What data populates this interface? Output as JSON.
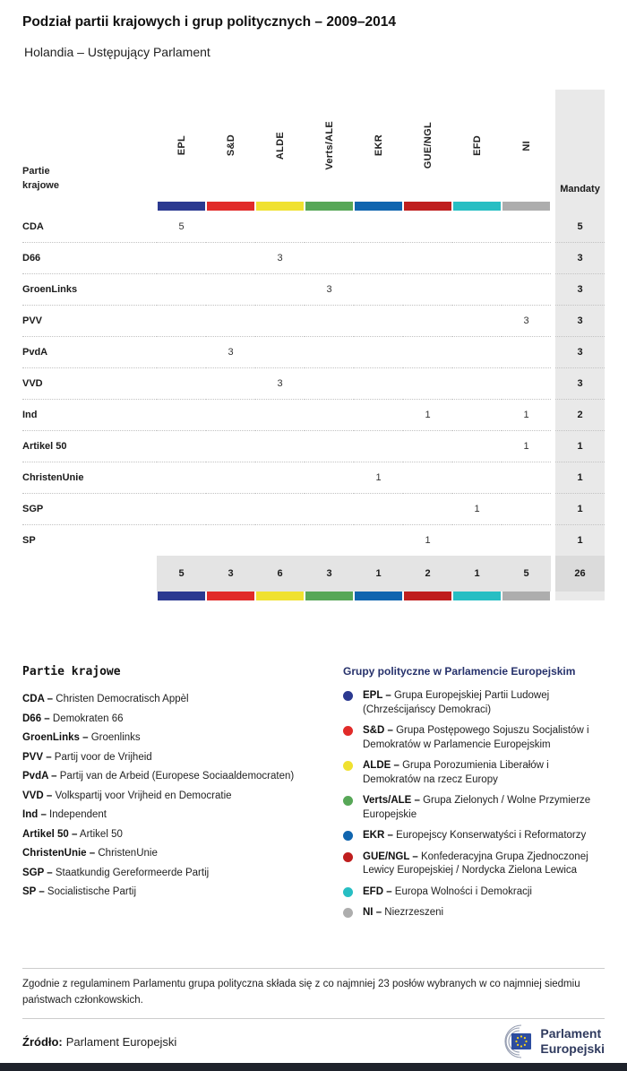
{
  "header": {
    "title": "Podział partii krajowych i grup politycznych – 2009–2014",
    "subtitle": "Holandia – Ustępujący Parlament"
  },
  "chart_data": {
    "type": "table",
    "title": "Podział partii krajowych i grup politycznych – 2009–2014",
    "subtitle": "Holandia – Ustępujący Parlament",
    "party_col_label_lines": [
      "Partie",
      "krajowe"
    ],
    "mandates_label": "Mandaty",
    "groups": [
      {
        "code": "EPL",
        "color": "#2B3990"
      },
      {
        "code": "S&D",
        "color": "#E12B29"
      },
      {
        "code": "ALDE",
        "color": "#F0E130"
      },
      {
        "code": "Verts/ALE",
        "color": "#57A757"
      },
      {
        "code": "EKR",
        "color": "#1065AF"
      },
      {
        "code": "GUE/NGL",
        "color": "#BF1E1E"
      },
      {
        "code": "EFD",
        "color": "#27BEC3"
      },
      {
        "code": "NI",
        "color": "#ADADAD"
      }
    ],
    "rows": [
      {
        "party": "CDA",
        "values": [
          5,
          null,
          null,
          null,
          null,
          null,
          null,
          null
        ],
        "mandates": 5
      },
      {
        "party": "D66",
        "values": [
          null,
          null,
          3,
          null,
          null,
          null,
          null,
          null
        ],
        "mandates": 3
      },
      {
        "party": "GroenLinks",
        "values": [
          null,
          null,
          null,
          3,
          null,
          null,
          null,
          null
        ],
        "mandates": 3
      },
      {
        "party": "PVV",
        "values": [
          null,
          null,
          null,
          null,
          null,
          null,
          null,
          3
        ],
        "mandates": 3
      },
      {
        "party": "PvdA",
        "values": [
          null,
          3,
          null,
          null,
          null,
          null,
          null,
          null
        ],
        "mandates": 3
      },
      {
        "party": "VVD",
        "values": [
          null,
          null,
          3,
          null,
          null,
          null,
          null,
          null
        ],
        "mandates": 3
      },
      {
        "party": "Ind",
        "values": [
          null,
          null,
          null,
          null,
          null,
          1,
          null,
          1
        ],
        "mandates": 2
      },
      {
        "party": "Artikel 50",
        "values": [
          null,
          null,
          null,
          null,
          null,
          null,
          null,
          1
        ],
        "mandates": 1
      },
      {
        "party": "ChristenUnie",
        "values": [
          null,
          null,
          null,
          null,
          1,
          null,
          null,
          null
        ],
        "mandates": 1
      },
      {
        "party": "SGP",
        "values": [
          null,
          null,
          null,
          null,
          null,
          null,
          1,
          null
        ],
        "mandates": 1
      },
      {
        "party": "SP",
        "values": [
          null,
          null,
          null,
          null,
          null,
          1,
          null,
          null
        ],
        "mandates": 1
      }
    ],
    "totals": {
      "values": [
        5,
        3,
        6,
        3,
        1,
        2,
        1,
        5
      ],
      "mandates": 26
    }
  },
  "legend_parties": {
    "heading": "Partie krajowe",
    "items": [
      {
        "abbr": "CDA",
        "name": "Christen Democratisch Appèl"
      },
      {
        "abbr": "D66",
        "name": "Demokraten 66"
      },
      {
        "abbr": "GroenLinks",
        "name": "Groenlinks"
      },
      {
        "abbr": "PVV",
        "name": "Partij voor de Vrijheid"
      },
      {
        "abbr": "PvdA",
        "name": "Partij van de Arbeid (Europese Sociaaldemocraten)"
      },
      {
        "abbr": "VVD",
        "name": "Volkspartij voor Vrijheid en Democratie"
      },
      {
        "abbr": "Ind",
        "name": "Independent"
      },
      {
        "abbr": "Artikel 50",
        "name": "Artikel 50"
      },
      {
        "abbr": "ChristenUnie",
        "name": "ChristenUnie"
      },
      {
        "abbr": "SGP",
        "name": "Staatkundig Gereformeerde Partij"
      },
      {
        "abbr": "SP",
        "name": "Socialistische Partij"
      }
    ]
  },
  "legend_groups": {
    "heading": "Grupy polityczne w Parlamencie Europejskim",
    "items": [
      {
        "code": "EPL",
        "color": "#2B3990",
        "description": "Grupa Europejskiej Partii Ludowej (Chrześcijańscy Demokraci)"
      },
      {
        "code": "S&D",
        "color": "#E12B29",
        "description": "Grupa Postępowego Sojuszu Socjalistów i Demokratów w Parlamencie Europejskim"
      },
      {
        "code": "ALDE",
        "color": "#F0E130",
        "description": "Grupa Porozumienia Liberałów i Demokratów na rzecz Europy"
      },
      {
        "code": "Verts/ALE",
        "color": "#57A757",
        "description": "Grupa Zielonych / Wolne Przymierze Europejskie"
      },
      {
        "code": "EKR",
        "color": "#1065AF",
        "description": "Europejscy Konserwatyści i Reformatorzy"
      },
      {
        "code": "GUE/NGL",
        "color": "#BF1E1E",
        "description": "Konfederacyjna Grupa Zjednoczonej Lewicy Europejskiej / Nordycka Zielona Lewica"
      },
      {
        "code": "EFD",
        "color": "#27BEC3",
        "description": "Europa Wolności i Demokracji"
      },
      {
        "code": "NI",
        "color": "#ADADAD",
        "description": "Niezrzeszeni"
      }
    ]
  },
  "footnote": "Zgodnie z regulaminem Parlamentu grupa polityczna składa się z co najmniej 23 posłów wybranych w co najmniej siedmiu państwach członkowskich.",
  "footer": {
    "source_label": "Źródło:",
    "source_value": "Parlament Europejski",
    "logo_line1": "Parlament",
    "logo_line2": "Europejski"
  }
}
